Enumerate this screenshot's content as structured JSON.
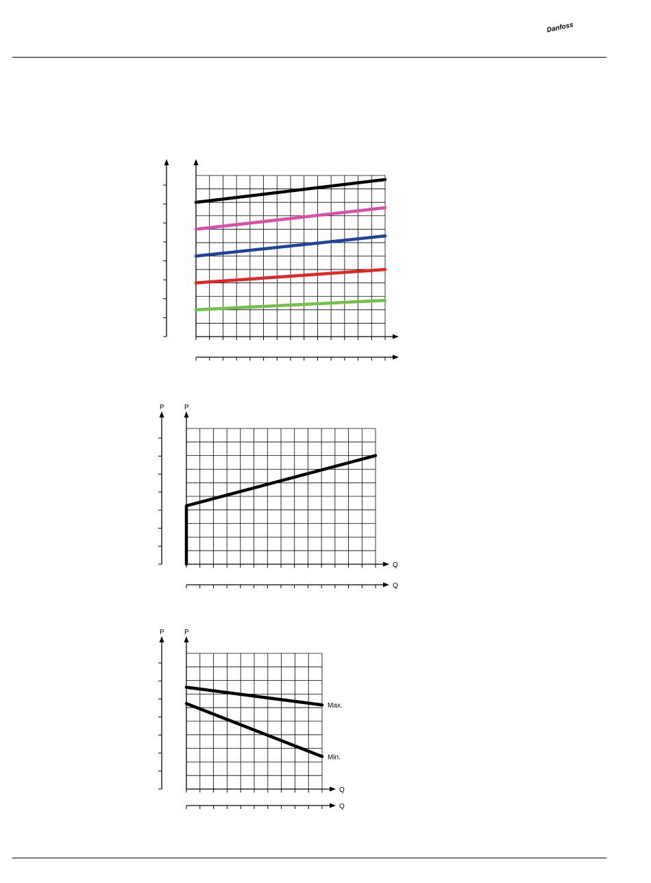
{
  "header": {
    "brand": "Danfoss",
    "brand_color": "#e2001a"
  },
  "chart_data": [
    {
      "type": "line",
      "xlabel": "",
      "ylabel": "",
      "xlim": [
        0,
        14
      ],
      "ylim": [
        0,
        12
      ],
      "grid": true,
      "series": [
        {
          "x": [
            0,
            14
          ],
          "values": [
            10.0,
            11.7
          ],
          "color": "#000000"
        },
        {
          "x": [
            0,
            14
          ],
          "values": [
            8.0,
            9.6
          ],
          "color": "#d94fa8"
        },
        {
          "x": [
            0,
            14
          ],
          "values": [
            6.0,
            7.5
          ],
          "color": "#21429b"
        },
        {
          "x": [
            0,
            14
          ],
          "values": [
            4.0,
            5.0
          ],
          "color": "#e32526"
        },
        {
          "x": [
            0,
            14
          ],
          "values": [
            2.0,
            2.7
          ],
          "color": "#73c04b"
        }
      ]
    },
    {
      "type": "line",
      "xlabel": "Q",
      "ylabel": "P",
      "xlim": [
        0,
        14
      ],
      "ylim": [
        0,
        10
      ],
      "grid": true,
      "series": [
        {
          "x": [
            0,
            0,
            14
          ],
          "values": [
            0,
            4.3,
            8.0
          ],
          "color": "#000000"
        }
      ]
    },
    {
      "type": "line",
      "xlabel": "Q",
      "ylabel": "P",
      "xlim": [
        0,
        10
      ],
      "ylim": [
        0,
        10
      ],
      "grid": true,
      "series": [
        {
          "name": "Max.",
          "x": [
            0,
            10
          ],
          "values": [
            7.5,
            6.2
          ],
          "color": "#000000"
        },
        {
          "name": "Min.",
          "x": [
            0,
            10
          ],
          "values": [
            6.3,
            2.4
          ],
          "color": "#000000"
        }
      ]
    }
  ]
}
